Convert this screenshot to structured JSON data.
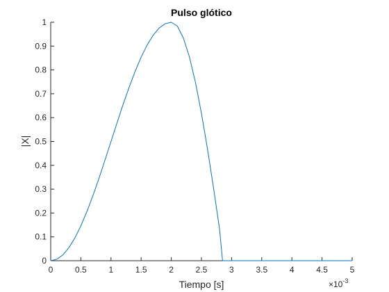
{
  "chart_data": {
    "type": "line",
    "title": "Pulso glótico",
    "xlabel": "Tiempo [s]",
    "ylabel": "|X|",
    "x_exponent_base": "×10",
    "x_exponent_power": "-3",
    "xlim": [
      0,
      5
    ],
    "ylim": [
      0,
      1
    ],
    "x_unit_scale": 0.001,
    "xticks": [
      0,
      0.5,
      1,
      1.5,
      2,
      2.5,
      3,
      3.5,
      4,
      4.5,
      5
    ],
    "xtick_labels": [
      "0",
      "0.5",
      "1",
      "1.5",
      "2",
      "2.5",
      "3",
      "3.5",
      "4",
      "4.5",
      "5"
    ],
    "yticks": [
      0,
      0.1,
      0.2,
      0.3,
      0.4,
      0.5,
      0.6,
      0.7,
      0.8,
      0.9,
      1
    ],
    "ytick_labels": [
      "0",
      "0.1",
      "0.2",
      "0.3",
      "0.4",
      "0.5",
      "0.6",
      "0.7",
      "0.8",
      "0.9",
      "1"
    ],
    "grid": false,
    "line_color": "#0072BD",
    "series": [
      {
        "x": [
          0,
          0.1,
          0.2,
          0.3,
          0.4,
          0.5,
          0.6,
          0.7,
          0.8,
          0.9,
          1.0,
          1.1,
          1.2,
          1.3,
          1.4,
          1.5,
          1.6,
          1.7,
          1.8,
          1.9,
          2.0,
          2.1,
          2.2,
          2.3,
          2.4,
          2.5,
          2.6,
          2.7,
          2.8,
          2.85,
          3.0,
          3.5,
          4.0,
          4.5,
          5.0
        ],
        "y": [
          0,
          0.006,
          0.024,
          0.054,
          0.095,
          0.146,
          0.206,
          0.273,
          0.345,
          0.422,
          0.5,
          0.578,
          0.655,
          0.727,
          0.794,
          0.854,
          0.905,
          0.946,
          0.976,
          0.994,
          1.0,
          0.984,
          0.934,
          0.855,
          0.749,
          0.618,
          0.469,
          0.306,
          0.133,
          0.0,
          0.0,
          0.0,
          0.0,
          0.0,
          0.0
        ]
      }
    ]
  }
}
